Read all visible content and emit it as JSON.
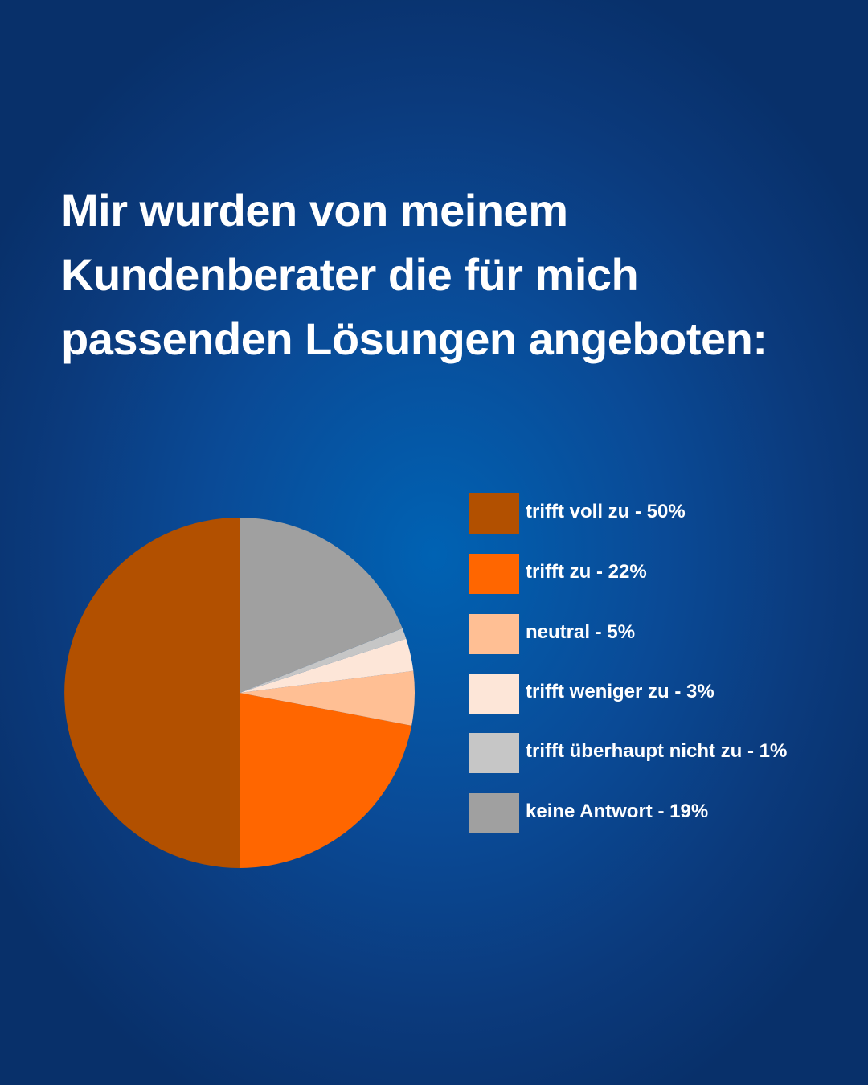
{
  "title_lines": [
    "Mir wurden von meinem",
    "Kundenberater die für mich",
    "passenden Lösungen angeboten:"
  ],
  "chart_data": {
    "type": "pie",
    "title": "Mir wurden von meinem Kundenberater die für mich passenden Lösungen angeboten:",
    "categories": [
      "trifft voll zu",
      "trifft zu",
      "neutral",
      "trifft weniger zu",
      "trifft überhaupt nicht zu",
      "keine Antwort"
    ],
    "values": [
      50,
      22,
      5,
      3,
      1,
      19
    ],
    "unit": "%",
    "colors": [
      "#b25000",
      "#ff6600",
      "#ffbf94",
      "#fde6d8",
      "#c6c6c6",
      "#a0a0a0"
    ],
    "legend_position": "right",
    "legend_labels": [
      "trifft voll zu - 50%",
      "trifft zu - 22%",
      "neutral - 5%",
      "trifft weniger zu - 3%",
      "trifft überhaupt nicht zu - 1%",
      "keine Antwort - 19%"
    ]
  }
}
